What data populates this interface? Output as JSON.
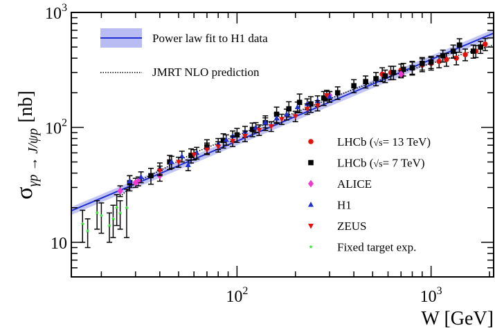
{
  "chart_data": {
    "type": "scatter",
    "title": "",
    "xlabel": "W [GeV]",
    "ylabel_main": "σ",
    "ylabel_sub": "γp → J/ψp",
    "ylabel_unit": "[nb]",
    "x_scale": "log",
    "y_scale": "log",
    "xlim": [
      14,
      2100
    ],
    "ylim": [
      5,
      1000
    ],
    "x_ticks": [
      {
        "value": 100,
        "base": "10",
        "exp": "2"
      },
      {
        "value": 1000,
        "base": "10",
        "exp": "3"
      }
    ],
    "y_ticks": [
      {
        "value": 10,
        "base": "10",
        "exp": ""
      },
      {
        "value": 100,
        "base": "10",
        "exp": "2"
      },
      {
        "value": 1000,
        "base": "10",
        "exp": "3"
      }
    ],
    "grid": false,
    "legend_top": [
      {
        "key": "fit",
        "label": "Power law fit to H1 data",
        "color": "#1f2fd0",
        "band_color": "#b8bcf2"
      },
      {
        "key": "nlo",
        "label": "JMRT NLO prediction",
        "color": "#000000"
      }
    ],
    "legend_bottom": [
      {
        "key": "lhcb13",
        "label_pre": "LHCb (",
        "label_sqrt": "√s",
        "label_post": "= 13 TeV)",
        "color": "#e3120b",
        "marker": "circle"
      },
      {
        "key": "lhcb7",
        "label_pre": "LHCb (",
        "label_sqrt": "√s",
        "label_post": "= 7 TeV)",
        "color": "#000000",
        "marker": "square"
      },
      {
        "key": "alice",
        "label_pre": "ALICE",
        "label_sqrt": "",
        "label_post": "",
        "color": "#f23ad0",
        "marker": "diamond"
      },
      {
        "key": "h1",
        "label_pre": "H1",
        "label_sqrt": "",
        "label_post": "",
        "color": "#1f2fd0",
        "marker": "triangle-up"
      },
      {
        "key": "zeus",
        "label_pre": "ZEUS",
        "label_sqrt": "",
        "label_post": "",
        "color": "#e3120b",
        "marker": "triangle-down"
      },
      {
        "key": "fixed",
        "label_pre": "Fixed target exp.",
        "label_sqrt": "",
        "label_post": "",
        "color": "#33e633",
        "marker": "star"
      }
    ],
    "fit_curve": {
      "x": [
        14,
        2100
      ],
      "y": [
        18.8,
        660
      ],
      "band_frac": 0.08
    },
    "nlo_curve": {
      "x": [
        25,
        30,
        40,
        60,
        100,
        200,
        400,
        700,
        1000,
        1500,
        2100
      ],
      "y": [
        25,
        33,
        42,
        60,
        85,
        135,
        215,
        300,
        360,
        440,
        520
      ]
    },
    "series": [
      {
        "key": "lhcb13",
        "points": [
          [
            560,
            290,
            40
          ],
          [
            620,
            300,
            40
          ],
          [
            700,
            315,
            40
          ],
          [
            800,
            330,
            40
          ],
          [
            900,
            350,
            45
          ],
          [
            1000,
            360,
            45
          ],
          [
            1100,
            375,
            45
          ],
          [
            1200,
            390,
            50
          ],
          [
            1350,
            400,
            50
          ],
          [
            1500,
            430,
            50
          ],
          [
            1700,
            460,
            55
          ],
          [
            1900,
            530,
            65
          ]
        ]
      },
      {
        "key": "lhcb7",
        "points": [
          [
            28,
            33,
            5
          ],
          [
            36,
            38,
            6
          ],
          [
            45,
            50,
            7
          ],
          [
            58,
            57,
            8
          ],
          [
            70,
            68,
            10
          ],
          [
            85,
            77,
            11
          ],
          [
            100,
            86,
            12
          ],
          [
            120,
            96,
            13
          ],
          [
            140,
            110,
            16
          ],
          [
            160,
            130,
            20
          ],
          [
            185,
            145,
            22
          ],
          [
            210,
            165,
            30
          ],
          [
            240,
            160,
            25
          ],
          [
            280,
            180,
            25
          ],
          [
            330,
            200,
            25
          ],
          [
            400,
            230,
            30
          ],
          [
            460,
            250,
            30
          ],
          [
            520,
            265,
            35
          ],
          [
            580,
            280,
            35
          ],
          [
            640,
            300,
            40
          ],
          [
            720,
            320,
            40
          ],
          [
            800,
            330,
            45
          ],
          [
            900,
            360,
            45
          ],
          [
            1000,
            370,
            45
          ],
          [
            1150,
            420,
            50
          ],
          [
            1300,
            460,
            60
          ],
          [
            1400,
            520,
            70
          ],
          [
            1650,
            460,
            60
          ],
          [
            1800,
            500,
            60
          ]
        ]
      },
      {
        "key": "alice",
        "points": [
          [
            25,
            28,
            3
          ],
          [
            30,
            33,
            3
          ],
          [
            31,
            34,
            3
          ],
          [
            40,
            38,
            4
          ],
          [
            300,
            190,
            15
          ],
          [
            700,
            290,
            20
          ]
        ]
      },
      {
        "key": "h1",
        "points": [
          [
            28,
            34,
            4
          ],
          [
            32,
            37,
            4
          ],
          [
            40,
            44,
            5
          ],
          [
            46,
            50,
            6
          ],
          [
            52,
            56,
            6
          ],
          [
            56,
            47,
            5
          ],
          [
            62,
            60,
            7
          ],
          [
            70,
            66,
            7
          ],
          [
            80,
            72,
            8
          ],
          [
            88,
            78,
            8
          ],
          [
            95,
            84,
            9
          ],
          [
            110,
            92,
            10
          ],
          [
            125,
            100,
            10
          ],
          [
            140,
            110,
            11
          ],
          [
            160,
            120,
            12
          ],
          [
            180,
            130,
            14
          ],
          [
            205,
            150,
            16
          ],
          [
            230,
            160,
            17
          ],
          [
            260,
            170,
            18
          ],
          [
            300,
            185,
            20
          ]
        ]
      },
      {
        "key": "zeus",
        "points": [
          [
            40,
            42,
            4
          ],
          [
            50,
            50,
            5
          ],
          [
            60,
            58,
            6
          ],
          [
            70,
            64,
            6
          ],
          [
            80,
            68,
            7
          ],
          [
            95,
            76,
            8
          ],
          [
            110,
            84,
            9
          ],
          [
            130,
            95,
            10
          ],
          [
            150,
            102,
            10
          ],
          [
            170,
            118,
            12
          ],
          [
            200,
            125,
            13
          ],
          [
            230,
            145,
            15
          ],
          [
            260,
            155,
            16
          ],
          [
            290,
            190,
            20
          ]
        ]
      },
      {
        "key": "fixed",
        "points": [
          [
            16,
            14.5,
            4.5
          ],
          [
            17,
            12.5,
            3.5
          ],
          [
            19,
            18,
            5
          ],
          [
            20,
            17,
            5
          ],
          [
            22,
            14,
            4
          ],
          [
            23,
            16,
            5
          ],
          [
            24,
            20,
            6
          ],
          [
            25,
            18,
            5
          ],
          [
            27,
            20,
            9
          ]
        ]
      }
    ]
  }
}
